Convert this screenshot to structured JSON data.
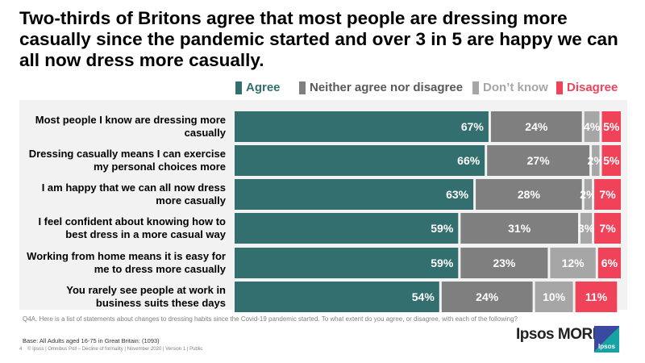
{
  "title": "Two-thirds of Britons agree that most people are dressing more casually since the pandemic started and over 3 in 5 are happy we can all now dress more casually.",
  "chart_data": {
    "type": "bar",
    "orientation": "horizontal",
    "stacked": true,
    "unit": "%",
    "xlim": [
      0,
      100
    ],
    "legend_position": "top",
    "categories": [
      "Most people I know are dressing more casually",
      "Dressing casually means I can exercise my personal choices more",
      "I am happy that we can all now dress more casually",
      "I feel confident about knowing how to best dress in a more casual way",
      "Working from home means it is easy for me to dress more casually",
      "You rarely see people at work in business suits these days"
    ],
    "series": [
      {
        "name": "Agree",
        "color": "#326f6e",
        "values": [
          67,
          66,
          63,
          59,
          59,
          54
        ]
      },
      {
        "name": "Neither agree nor disagree",
        "color": "#7f7f7f",
        "values": [
          24,
          27,
          28,
          31,
          23,
          24
        ]
      },
      {
        "name": "Don’t know",
        "color": "#a6a6a6",
        "values": [
          4,
          2,
          2,
          3,
          12,
          10
        ]
      },
      {
        "name": "Disagree",
        "color": "#f0435a",
        "values": [
          5,
          5,
          7,
          7,
          6,
          11
        ]
      }
    ]
  },
  "footer": {
    "question": "Q4A. Here is a list of statements about changes to dressing habits since the Covid-19 pandemic started. To what extent do you agree, or disagree, with each of the following?",
    "base": "Base: All Adults aged 16-75 in Great Britain: (1093)",
    "page_number": "4",
    "credit": "© Ipsos | Omnibus Poll – Decline of formality  | November  2020 | Version 1 | Public",
    "brand": "Ipsos MORI",
    "logo_text": "Ipsos"
  }
}
